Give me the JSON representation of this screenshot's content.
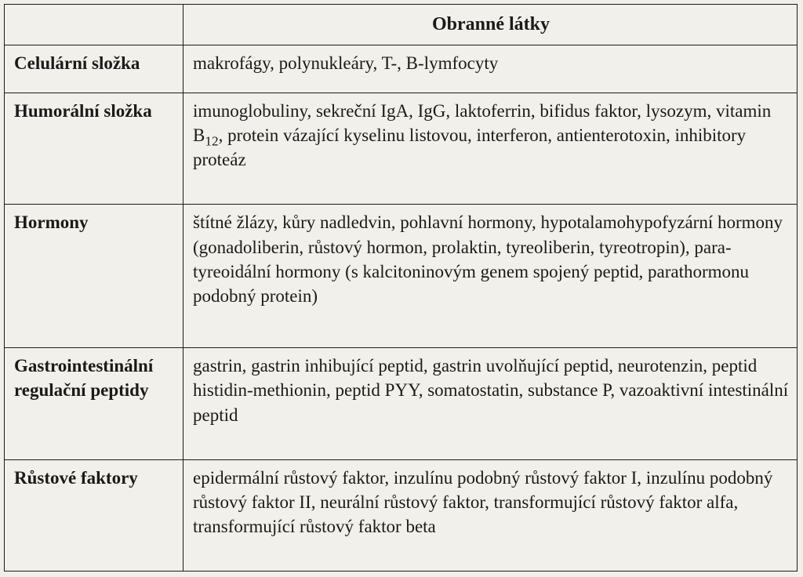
{
  "table": {
    "header_blank": "",
    "header_title": "Obranné látky",
    "rows": [
      {
        "label": "Celulární složka",
        "value": "makrofágy, polynukleáry, T-, B-lymfocyty"
      },
      {
        "label": "Humorální složka",
        "value_pre": "imunoglobuliny, sekreční IgA, IgG, laktoferrin, bifidus faktor, lysozym, vitamin B",
        "value_sub": "12",
        "value_post": ", protein vázající kyselinu listovou, interferon, antienterotoxin, inhibitory  proteáz"
      },
      {
        "label": "Hormony",
        "value": "štítné žlázy, kůry nadledvin, pohlavní hormony, hypota­lamohypofyzární hormony (gonadoliberin, růstový hormon, prolaktin,  tyreoliberin, tyreotropin), para­tyreoidální hormony (s kalcitoninovým genem spojený peptid, parathormonu podobný protein)"
      },
      {
        "label": "Gastrointestinální regulační peptidy",
        "value": "gastrin, gastrin inhibující peptid, gastrin uvolňující peptid, neurotenzin, peptid histidin-methionin, peptid PYY, somatostatin, substance P, vazoaktivní intestinální peptid"
      },
      {
        "label": "Růstové faktory",
        "value": "epidermální růstový faktor, inzulínu podobný růstový faktor I, inzulínu podobný růstový faktor II, neurální růstový faktor,  transformující růstový faktor alfa, transformující růstový faktor beta"
      }
    ]
  }
}
